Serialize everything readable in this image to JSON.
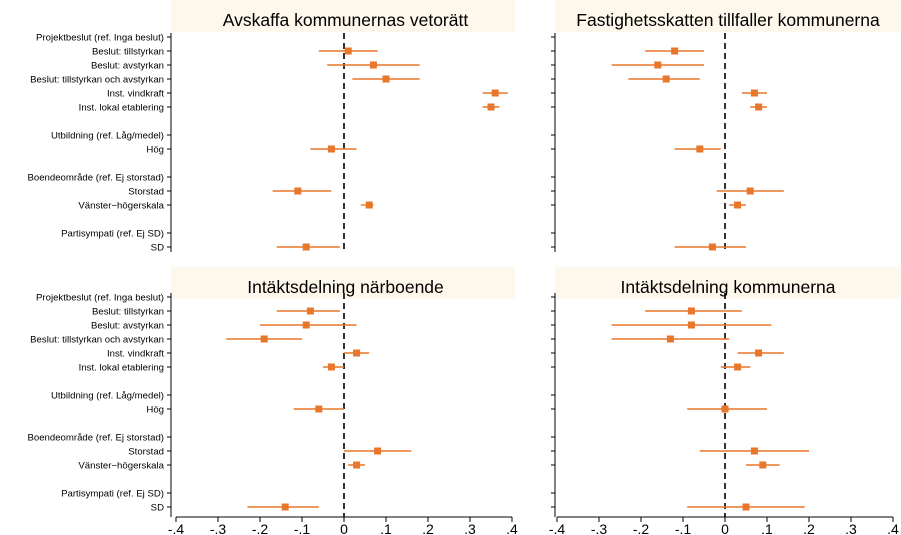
{
  "colors": {
    "marker": "#e8762b",
    "panel_title_bg": "#fdf7ec",
    "axis": "#000000",
    "zero_line": "#000000"
  },
  "row_labels": [
    {
      "text": "Projektbeslut (ref. Inga beslut)",
      "header": true
    },
    {
      "text": "Beslut: tillstyrkan",
      "header": false
    },
    {
      "text": "Beslut: avstyrkan",
      "header": false
    },
    {
      "text": "Beslut: tillstyrkan och avstyrkan",
      "header": false
    },
    {
      "text": "Inst. vindkraft",
      "header": false
    },
    {
      "text": "Inst. lokal etablering",
      "header": false
    },
    {
      "text": "",
      "header": false
    },
    {
      "text": "Utbildning (ref. Låg/medel)",
      "header": true
    },
    {
      "text": "Hög",
      "header": false
    },
    {
      "text": "",
      "header": false
    },
    {
      "text": "Boendeområde (ref. Ej storstad)",
      "header": true
    },
    {
      "text": "Storstad",
      "header": false
    },
    {
      "text": "Vänster−högerskala",
      "header": false
    },
    {
      "text": "",
      "header": false
    },
    {
      "text": "Partisympati (ref. Ej SD)",
      "header": true
    },
    {
      "text": "SD",
      "header": false
    }
  ],
  "chart_data": [
    {
      "type": "coefficient-plot",
      "title": "Avskaffa kommunernas vetorätt",
      "xlim": [
        -0.4,
        0.4
      ],
      "xticks": [
        -0.4,
        -0.3,
        -0.2,
        -0.1,
        0,
        0.1,
        0.2,
        0.3,
        0.4
      ],
      "xtick_labels": [
        "-.4",
        "-.3",
        "-.2",
        "-.1",
        "0",
        ".1",
        ".2",
        ".3",
        ".4"
      ],
      "reference_line": 0,
      "points": [
        {
          "label": "Beslut: tillstyrkan",
          "row": 1,
          "estimate": 0.01,
          "ci": [
            -0.06,
            0.08
          ]
        },
        {
          "label": "Beslut: avstyrkan",
          "row": 2,
          "estimate": 0.07,
          "ci": [
            -0.04,
            0.18
          ]
        },
        {
          "label": "Beslut: tillstyrkan och avstyrkan",
          "row": 3,
          "estimate": 0.1,
          "ci": [
            0.02,
            0.18
          ]
        },
        {
          "label": "Inst. vindkraft",
          "row": 4,
          "estimate": 0.36,
          "ci": [
            0.33,
            0.39
          ]
        },
        {
          "label": "Inst. lokal etablering",
          "row": 5,
          "estimate": 0.35,
          "ci": [
            0.33,
            0.37
          ]
        },
        {
          "label": "Hög",
          "row": 8,
          "estimate": -0.03,
          "ci": [
            -0.08,
            0.03
          ]
        },
        {
          "label": "Storstad",
          "row": 11,
          "estimate": -0.11,
          "ci": [
            -0.17,
            -0.03
          ]
        },
        {
          "label": "Vänster−högerskala",
          "row": 12,
          "estimate": 0.06,
          "ci": [
            0.04,
            0.07
          ]
        },
        {
          "label": "SD",
          "row": 15,
          "estimate": -0.09,
          "ci": [
            -0.16,
            -0.01
          ]
        }
      ]
    },
    {
      "type": "coefficient-plot",
      "title": "Fastighetsskatten tillfaller kommunerna",
      "xlim": [
        -0.4,
        0.4
      ],
      "xticks": [
        -0.4,
        -0.3,
        -0.2,
        -0.1,
        0,
        0.1,
        0.2,
        0.3,
        0.4
      ],
      "xtick_labels": [
        "-.4",
        "-.3",
        "-.2",
        "-.1",
        "0",
        ".1",
        ".2",
        ".3",
        ".4"
      ],
      "reference_line": 0,
      "points": [
        {
          "label": "Beslut: tillstyrkan",
          "row": 1,
          "estimate": -0.12,
          "ci": [
            -0.19,
            -0.05
          ]
        },
        {
          "label": "Beslut: avstyrkan",
          "row": 2,
          "estimate": -0.16,
          "ci": [
            -0.27,
            -0.05
          ]
        },
        {
          "label": "Beslut: tillstyrkan och avstyrkan",
          "row": 3,
          "estimate": -0.14,
          "ci": [
            -0.23,
            -0.06
          ]
        },
        {
          "label": "Inst. vindkraft",
          "row": 4,
          "estimate": 0.07,
          "ci": [
            0.04,
            0.1
          ]
        },
        {
          "label": "Inst. lokal etablering",
          "row": 5,
          "estimate": 0.08,
          "ci": [
            0.06,
            0.1
          ]
        },
        {
          "label": "Hög",
          "row": 8,
          "estimate": -0.06,
          "ci": [
            -0.12,
            -0.01
          ]
        },
        {
          "label": "Storstad",
          "row": 11,
          "estimate": 0.06,
          "ci": [
            -0.02,
            0.14
          ]
        },
        {
          "label": "Vänster−högerskala",
          "row": 12,
          "estimate": 0.03,
          "ci": [
            0.01,
            0.05
          ]
        },
        {
          "label": "SD",
          "row": 15,
          "estimate": -0.03,
          "ci": [
            -0.12,
            0.05
          ]
        }
      ]
    },
    {
      "type": "coefficient-plot",
      "title": "Intäktsdelning närboende",
      "xlim": [
        -0.4,
        0.4
      ],
      "xticks": [
        -0.4,
        -0.3,
        -0.2,
        -0.1,
        0,
        0.1,
        0.2,
        0.3,
        0.4
      ],
      "xtick_labels": [
        "-.4",
        "-.3",
        "-.2",
        "-.1",
        "0",
        ".1",
        ".2",
        ".3",
        ".4"
      ],
      "reference_line": 0,
      "points": [
        {
          "label": "Beslut: tillstyrkan",
          "row": 1,
          "estimate": -0.08,
          "ci": [
            -0.16,
            -0.01
          ]
        },
        {
          "label": "Beslut: avstyrkan",
          "row": 2,
          "estimate": -0.09,
          "ci": [
            -0.2,
            0.03
          ]
        },
        {
          "label": "Beslut: tillstyrkan och avstyrkan",
          "row": 3,
          "estimate": -0.19,
          "ci": [
            -0.28,
            -0.1
          ]
        },
        {
          "label": "Inst. vindkraft",
          "row": 4,
          "estimate": 0.03,
          "ci": [
            0.0,
            0.06
          ]
        },
        {
          "label": "Inst. lokal etablering",
          "row": 5,
          "estimate": -0.03,
          "ci": [
            -0.05,
            0.0
          ]
        },
        {
          "label": "Hög",
          "row": 8,
          "estimate": -0.06,
          "ci": [
            -0.12,
            0.0
          ]
        },
        {
          "label": "Storstad",
          "row": 11,
          "estimate": 0.08,
          "ci": [
            0.0,
            0.16
          ]
        },
        {
          "label": "Vänster−högerskala",
          "row": 12,
          "estimate": 0.03,
          "ci": [
            0.01,
            0.05
          ]
        },
        {
          "label": "SD",
          "row": 15,
          "estimate": -0.14,
          "ci": [
            -0.23,
            -0.06
          ]
        }
      ]
    },
    {
      "type": "coefficient-plot",
      "title": "Intäktsdelning kommunerna",
      "xlim": [
        -0.4,
        0.4
      ],
      "xticks": [
        -0.4,
        -0.3,
        -0.2,
        -0.1,
        0,
        0.1,
        0.2,
        0.3,
        0.4
      ],
      "xtick_labels": [
        "-.4",
        "-.3",
        "-.2",
        "-.1",
        "0",
        ".1",
        ".2",
        ".3",
        ".4"
      ],
      "reference_line": 0,
      "points": [
        {
          "label": "Beslut: tillstyrkan",
          "row": 1,
          "estimate": -0.08,
          "ci": [
            -0.19,
            0.04
          ]
        },
        {
          "label": "Beslut: avstyrkan",
          "row": 2,
          "estimate": -0.08,
          "ci": [
            -0.27,
            0.11
          ]
        },
        {
          "label": "Beslut: tillstyrkan och avstyrkan",
          "row": 3,
          "estimate": -0.13,
          "ci": [
            -0.27,
            0.01
          ]
        },
        {
          "label": "Inst. vindkraft",
          "row": 4,
          "estimate": 0.08,
          "ci": [
            0.03,
            0.14
          ]
        },
        {
          "label": "Inst. lokal etablering",
          "row": 5,
          "estimate": 0.03,
          "ci": [
            -0.01,
            0.06
          ]
        },
        {
          "label": "Hög",
          "row": 8,
          "estimate": 0.0,
          "ci": [
            -0.09,
            0.1
          ]
        },
        {
          "label": "Storstad",
          "row": 11,
          "estimate": 0.07,
          "ci": [
            -0.06,
            0.2
          ]
        },
        {
          "label": "Vänster−högerskala",
          "row": 12,
          "estimate": 0.09,
          "ci": [
            0.05,
            0.13
          ]
        },
        {
          "label": "SD",
          "row": 15,
          "estimate": 0.05,
          "ci": [
            -0.09,
            0.19
          ]
        }
      ]
    }
  ]
}
